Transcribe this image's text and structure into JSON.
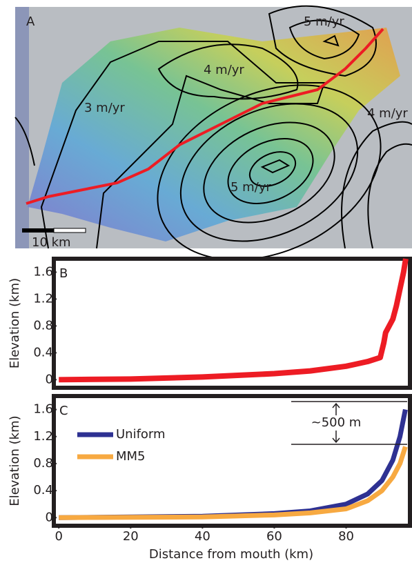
{
  "map": {
    "panel_label": "A",
    "contour_labels": [
      "5 m/yr",
      "4 m/yr",
      "3 m/yr",
      "4 m/yr",
      "5 m/yr"
    ],
    "scale_bar": "10 km"
  },
  "chart_data": [
    {
      "type": "line",
      "panel_label": "B",
      "ylabel": "Elevation (km)",
      "xlim": [
        -1,
        97
      ],
      "ylim": [
        -0.12,
        1.8
      ],
      "yticks": [
        0,
        0.4,
        0.8,
        1.2,
        1.6
      ],
      "series": [
        {
          "color": "#ed1c24",
          "x": [
            0,
            20,
            40,
            60,
            70,
            80,
            86,
            89.5,
            90.5,
            91,
            92,
            93,
            94,
            95,
            96,
            96.6
          ],
          "values": [
            0,
            0.01,
            0.04,
            0.09,
            0.13,
            0.2,
            0.27,
            0.33,
            0.55,
            0.7,
            0.8,
            0.9,
            1.1,
            1.35,
            1.6,
            1.8
          ]
        }
      ]
    },
    {
      "type": "line",
      "panel_label": "C",
      "ylabel": "Elevation (km)",
      "xlabel": "Distance from mouth (km)",
      "xlim": [
        -1,
        97
      ],
      "ylim": [
        -0.12,
        1.8
      ],
      "yticks": [
        0,
        0.4,
        0.8,
        1.2,
        1.6
      ],
      "xticks": [
        0,
        20,
        40,
        60,
        80
      ],
      "legend": "upper left",
      "annotation": "~500 m",
      "series": [
        {
          "name": "Uniform",
          "color": "#2e3192",
          "x": [
            0,
            40,
            60,
            70,
            80,
            86,
            90,
            93,
            95,
            96.5
          ],
          "values": [
            0,
            0.02,
            0.06,
            0.1,
            0.2,
            0.35,
            0.55,
            0.85,
            1.2,
            1.6
          ]
        },
        {
          "name": "MM5",
          "color": "#f7a941",
          "x": [
            0,
            40,
            60,
            70,
            80,
            86,
            90,
            93,
            95,
            96.5
          ],
          "values": [
            0,
            0.01,
            0.04,
            0.07,
            0.13,
            0.25,
            0.4,
            0.6,
            0.8,
            1.05
          ]
        }
      ]
    }
  ]
}
